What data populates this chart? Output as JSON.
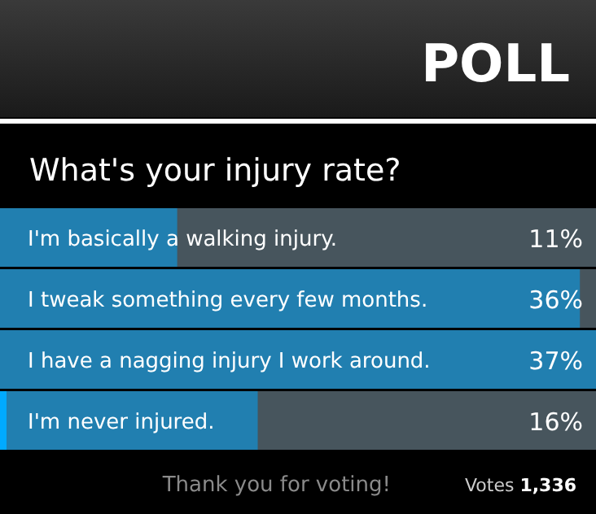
{
  "chart_data": {
    "type": "bar",
    "orientation": "horizontal",
    "title": "POLL",
    "subtitle": "What's your injury rate?",
    "categories": [
      "I'm basically a walking injury.",
      "I tweak something every few months.",
      "I have a nagging injury I work around.",
      "I'm never injured."
    ],
    "values": [
      11,
      36,
      37,
      16
    ],
    "value_labels": [
      "11%",
      "36%",
      "37%",
      "16%"
    ],
    "color": "#217fb0",
    "annotations": [
      "Thank you for voting!",
      "Votes 1,336"
    ]
  }
}
